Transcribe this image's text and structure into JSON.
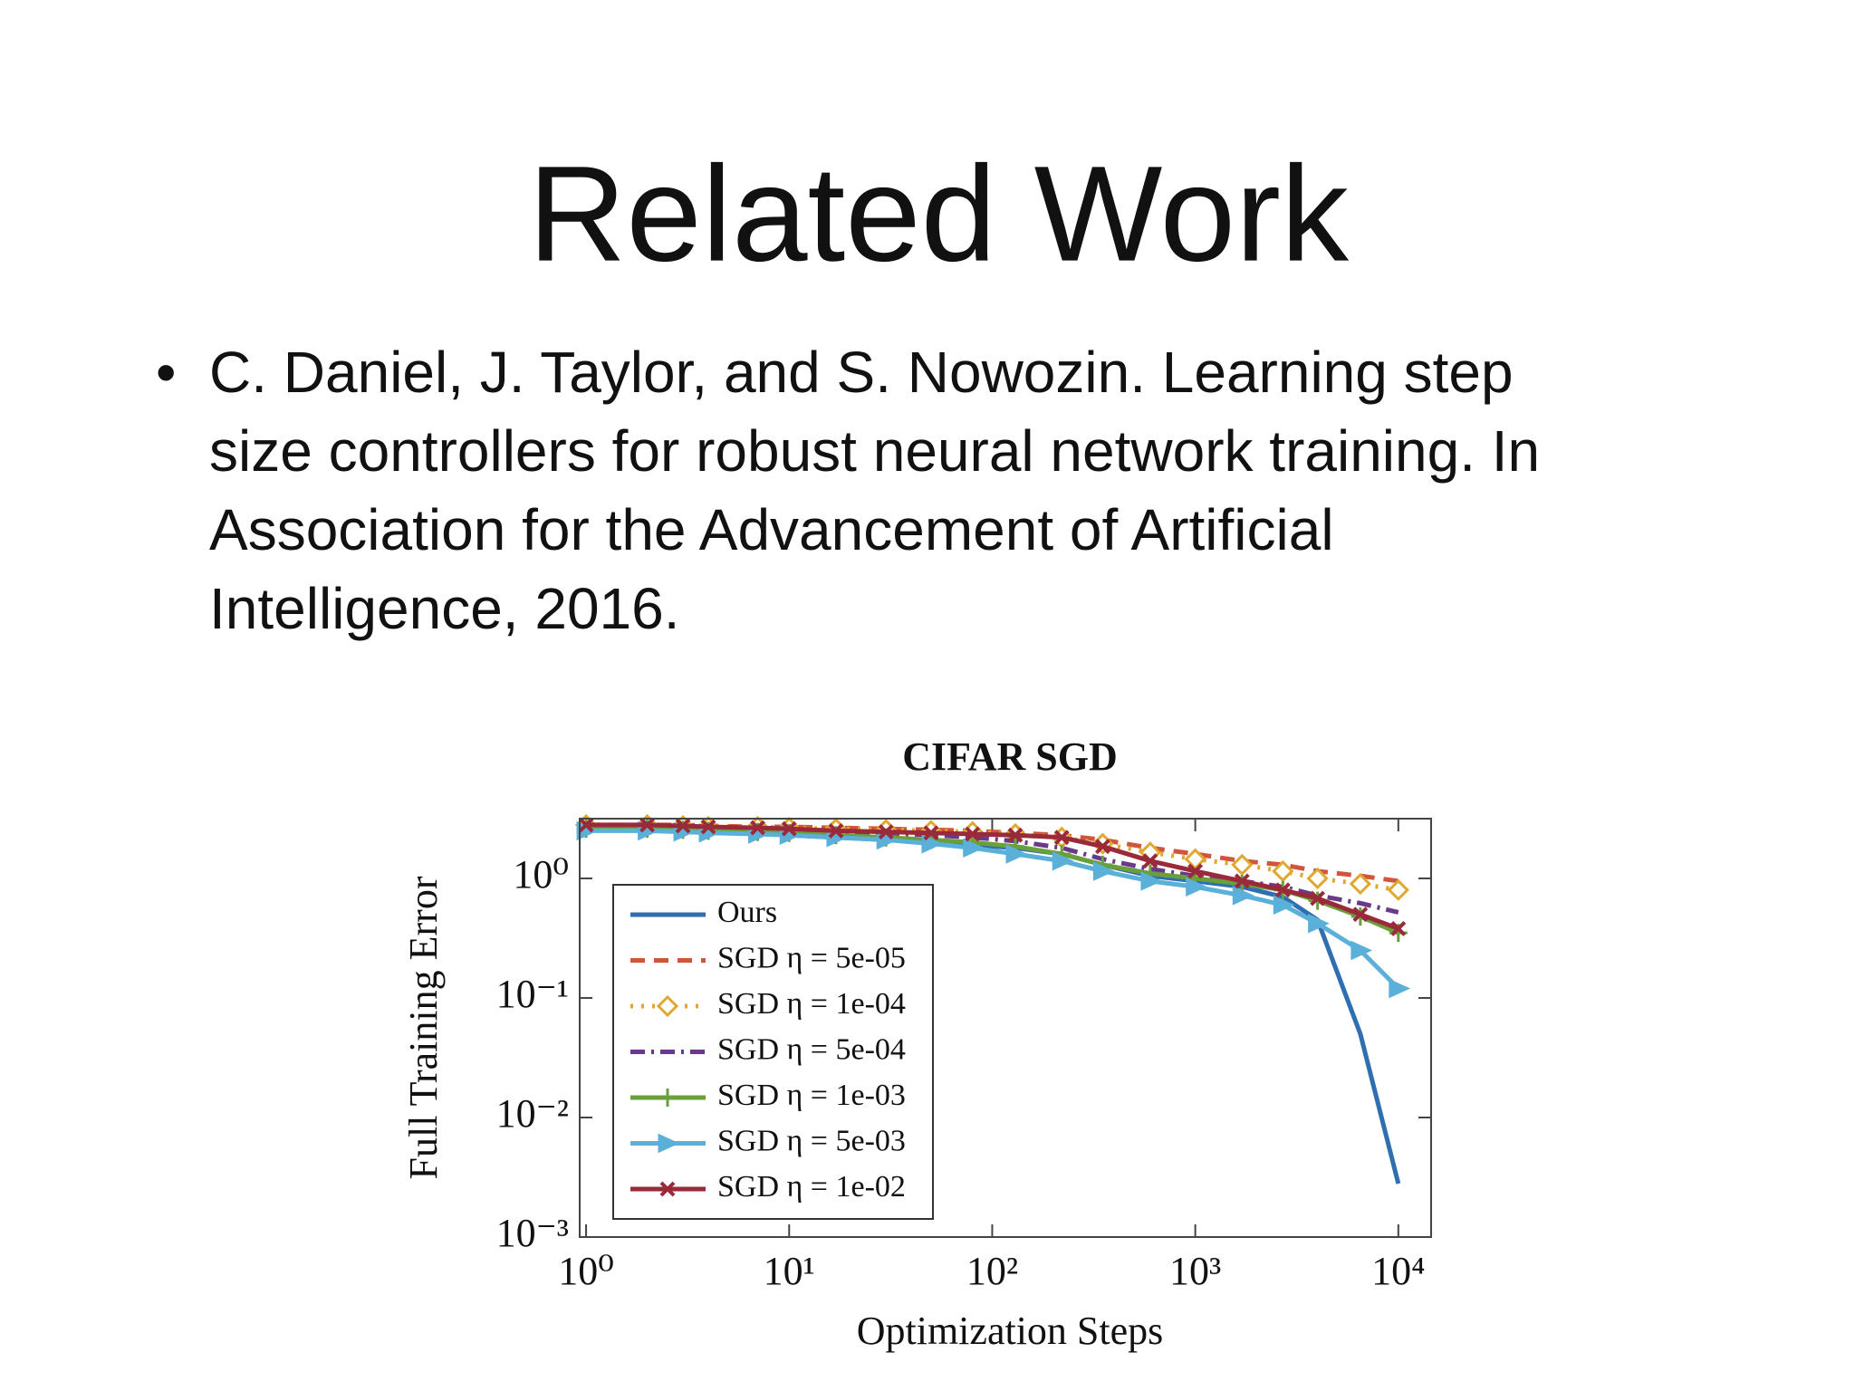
{
  "slide": {
    "title": "Related Work",
    "bullet": "•",
    "bullet_lines": [
      "C. Daniel, J. Taylor, and S. Nowozin. Learning step",
      "size controllers for robust neural network training. In",
      "Association for the Advancement of Artificial",
      "Intelligence, 2016."
    ]
  },
  "chart_data": {
    "type": "line",
    "title": "CIFAR SGD",
    "x_label": "Optimization Steps",
    "y_label": "Full Training Error",
    "xscale": "log",
    "yscale": "log",
    "xlim": [
      0.93,
      14500
    ],
    "ylim": [
      0.001,
      3.16
    ],
    "xticks": [
      {
        "value": 1,
        "label": "10⁰"
      },
      {
        "value": 10,
        "label": "10¹"
      },
      {
        "value": 100,
        "label": "10²"
      },
      {
        "value": 1000,
        "label": "10³"
      },
      {
        "value": 10000,
        "label": "10⁴"
      }
    ],
    "yticks": [
      {
        "value": 0.001,
        "label": "10⁻³"
      },
      {
        "value": 0.01,
        "label": "10⁻²"
      },
      {
        "value": 0.1,
        "label": "10⁻¹"
      },
      {
        "value": 1,
        "label": "10⁰"
      }
    ],
    "legend": "center left",
    "x": [
      1,
      2,
      3,
      4,
      7,
      10,
      17,
      30,
      50,
      80,
      130,
      220,
      350,
      600,
      1000,
      1700,
      2700,
      4000,
      6500,
      10000
    ],
    "series": [
      {
        "name": "Ours",
        "color": "#2f6eb0",
        "linestyle": "solid",
        "marker": "none",
        "values": [
          2.6,
          2.6,
          2.55,
          2.5,
          2.4,
          2.3,
          2.2,
          2.1,
          2.0,
          1.9,
          1.8,
          1.6,
          1.3,
          1.05,
          0.95,
          0.85,
          0.7,
          0.45,
          0.05,
          0.0028
        ]
      },
      {
        "name": "SGD η = 5e-05",
        "color": "#d0553a",
        "linestyle": "dashed",
        "marker": "none",
        "values": [
          2.8,
          2.8,
          2.8,
          2.75,
          2.7,
          2.7,
          2.65,
          2.6,
          2.55,
          2.5,
          2.4,
          2.3,
          2.1,
          1.8,
          1.6,
          1.4,
          1.3,
          1.15,
          1.05,
          0.95
        ]
      },
      {
        "name": "SGD η = 1e-04",
        "color": "#e0a830",
        "linestyle": "dotted",
        "marker": "diamond",
        "values": [
          2.8,
          2.8,
          2.75,
          2.7,
          2.7,
          2.65,
          2.6,
          2.55,
          2.5,
          2.45,
          2.35,
          2.2,
          1.95,
          1.65,
          1.45,
          1.3,
          1.15,
          1.0,
          0.9,
          0.8
        ]
      },
      {
        "name": "SGD η = 5e-04",
        "color": "#6a3a8a",
        "linestyle": "dashdot",
        "marker": "none",
        "values": [
          2.7,
          2.7,
          2.65,
          2.6,
          2.55,
          2.5,
          2.45,
          2.4,
          2.3,
          2.2,
          2.05,
          1.8,
          1.45,
          1.2,
          1.05,
          0.95,
          0.85,
          0.72,
          0.62,
          0.52
        ]
      },
      {
        "name": "SGD η = 1e-03",
        "color": "#6aa03a",
        "linestyle": "solid",
        "marker": "plus",
        "values": [
          2.6,
          2.6,
          2.55,
          2.5,
          2.45,
          2.4,
          2.3,
          2.2,
          2.1,
          2.0,
          1.85,
          1.6,
          1.3,
          1.1,
          1.0,
          0.9,
          0.8,
          0.65,
          0.48,
          0.35
        ]
      },
      {
        "name": "SGD η = 5e-03",
        "color": "#5ab0d8",
        "linestyle": "solid",
        "marker": "triangle-right",
        "values": [
          2.5,
          2.5,
          2.45,
          2.4,
          2.35,
          2.3,
          2.2,
          2.1,
          1.95,
          1.8,
          1.6,
          1.4,
          1.15,
          0.95,
          0.85,
          0.72,
          0.6,
          0.42,
          0.25,
          0.12
        ]
      },
      {
        "name": "SGD η = 1e-02",
        "color": "#9a2a3a",
        "linestyle": "solid",
        "marker": "x",
        "values": [
          2.8,
          2.8,
          2.75,
          2.7,
          2.65,
          2.6,
          2.5,
          2.45,
          2.4,
          2.35,
          2.3,
          2.2,
          1.85,
          1.4,
          1.15,
          0.95,
          0.8,
          0.68,
          0.5,
          0.38
        ]
      }
    ]
  }
}
